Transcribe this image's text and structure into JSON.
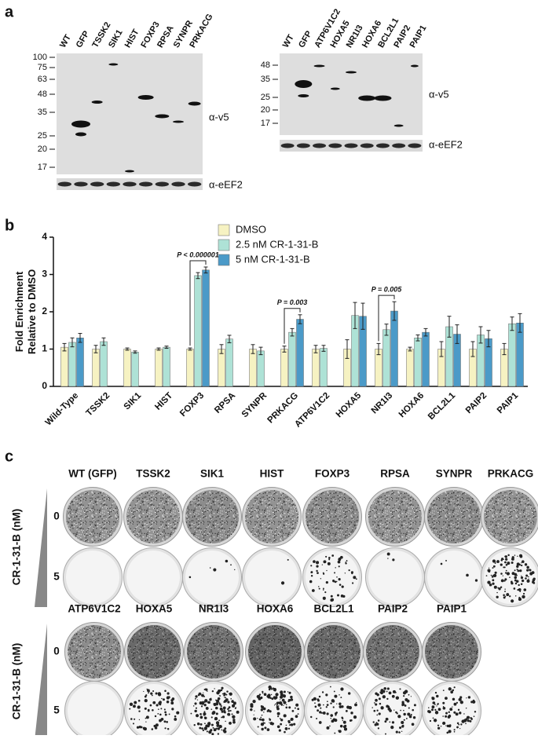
{
  "panel_labels": [
    "a",
    "b",
    "c"
  ],
  "panel_a": {
    "blots": [
      {
        "lanes": [
          "WT",
          "GFP",
          "TSSK2",
          "SIK1",
          "HIST",
          "FOXP3",
          "RPSA",
          "SYNPR",
          "PRKACG"
        ],
        "markers": [
          100,
          75,
          63,
          48,
          35,
          25,
          20,
          17
        ],
        "antibodies": [
          "α-v5",
          "α-eEF2"
        ]
      },
      {
        "lanes": [
          "WT",
          "GFP",
          "ATP6V1C2",
          "HOXA5",
          "NR1I3",
          "HOXA6",
          "BCL2L1",
          "PAIP2",
          "PAIP1"
        ],
        "markers": [
          48,
          35,
          25,
          20,
          17
        ],
        "antibodies": [
          "α-v5",
          "α-eEF2"
        ]
      }
    ]
  },
  "chart_data": {
    "type": "bar",
    "ylabel": [
      "Fold Enrichment",
      "Relative to DMSO"
    ],
    "categories": [
      "Wild-Type",
      "TSSK2",
      "SIK1",
      "HIST",
      "FOXP3",
      "RPSA",
      "SYNPR",
      "PRKACG",
      "ATP6V1C2",
      "HOXA5",
      "NR1I3",
      "HOXA6",
      "BCL2L1",
      "PAIP2",
      "PAIP1"
    ],
    "series": [
      {
        "name": "DMSO",
        "color": "#f6f2c2",
        "values": [
          1.05,
          1.0,
          1.0,
          1.0,
          1.0,
          1.0,
          1.0,
          1.0,
          1.0,
          1.0,
          1.0,
          1.0,
          1.0,
          1.0,
          1.0
        ],
        "errors": [
          0.1,
          0.1,
          0.03,
          0.03,
          0.03,
          0.12,
          0.12,
          0.08,
          0.1,
          0.25,
          0.15,
          0.05,
          0.2,
          0.2,
          0.15
        ]
      },
      {
        "name": "2.5 nM CR-1-31-B",
        "color": "#aee2d6",
        "values": [
          1.18,
          1.2,
          0.92,
          1.05,
          2.97,
          1.27,
          0.95,
          1.45,
          1.02,
          1.9,
          1.52,
          1.3,
          1.6,
          1.38,
          1.68
        ],
        "errors": [
          0.12,
          0.1,
          0.03,
          0.03,
          0.08,
          0.1,
          0.1,
          0.1,
          0.08,
          0.35,
          0.15,
          0.08,
          0.28,
          0.22,
          0.18
        ]
      },
      {
        "name": "5 nM CR-1-31-B",
        "color": "#4b9ac8",
        "values": [
          1.3,
          null,
          null,
          null,
          3.12,
          null,
          null,
          1.8,
          null,
          1.88,
          2.02,
          1.45,
          1.4,
          1.28,
          1.7
        ],
        "errors": [
          0.12,
          null,
          null,
          null,
          0.08,
          null,
          null,
          0.12,
          null,
          0.35,
          0.25,
          0.1,
          0.25,
          0.22,
          0.25
        ]
      }
    ],
    "ylim": [
      0,
      4
    ],
    "yticks": [
      0,
      1,
      2,
      3,
      4
    ],
    "grid": false,
    "legend": "top",
    "annotations": [
      {
        "text": "P < 0.000001",
        "category": "FOXP3"
      },
      {
        "text": "P = 0.003",
        "category": "PRKACG"
      },
      {
        "text": "P = 0.005",
        "category": "NR1I3"
      }
    ]
  },
  "panel_c": {
    "dose_axis_label": "CR-1-31-B (nM)",
    "doses": [
      0,
      5
    ],
    "groups": [
      {
        "samples": [
          "WT (GFP)",
          "TSSK2",
          "SIK1",
          "HIST",
          "FOXP3",
          "RPSA",
          "SYNPR",
          "PRKACG"
        ]
      },
      {
        "samples": [
          "ATP6V1C2",
          "HOXA5",
          "NR1I3",
          "HOXA6",
          "BCL2L1",
          "PAIP2",
          "PAIP1"
        ]
      }
    ]
  }
}
